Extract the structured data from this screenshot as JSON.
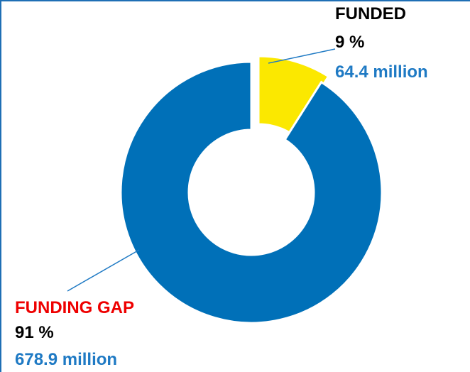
{
  "chart_data": {
    "type": "pie",
    "title": "",
    "slices": [
      {
        "label": "FUNDED",
        "percent": 9,
        "percent_text": "9 %",
        "amount_text": "64.4 million",
        "value_million": 64.4,
        "color": "#fbe800",
        "label_color": "#000000"
      },
      {
        "label": "FUNDING GAP",
        "percent": 91,
        "percent_text": "91 %",
        "amount_text": "678.9 million",
        "value_million": 678.9,
        "color": "#0070b8",
        "label_color": "#ee0000"
      }
    ],
    "amount_color": "#1f7ac4",
    "donut": true,
    "legend": "none"
  }
}
